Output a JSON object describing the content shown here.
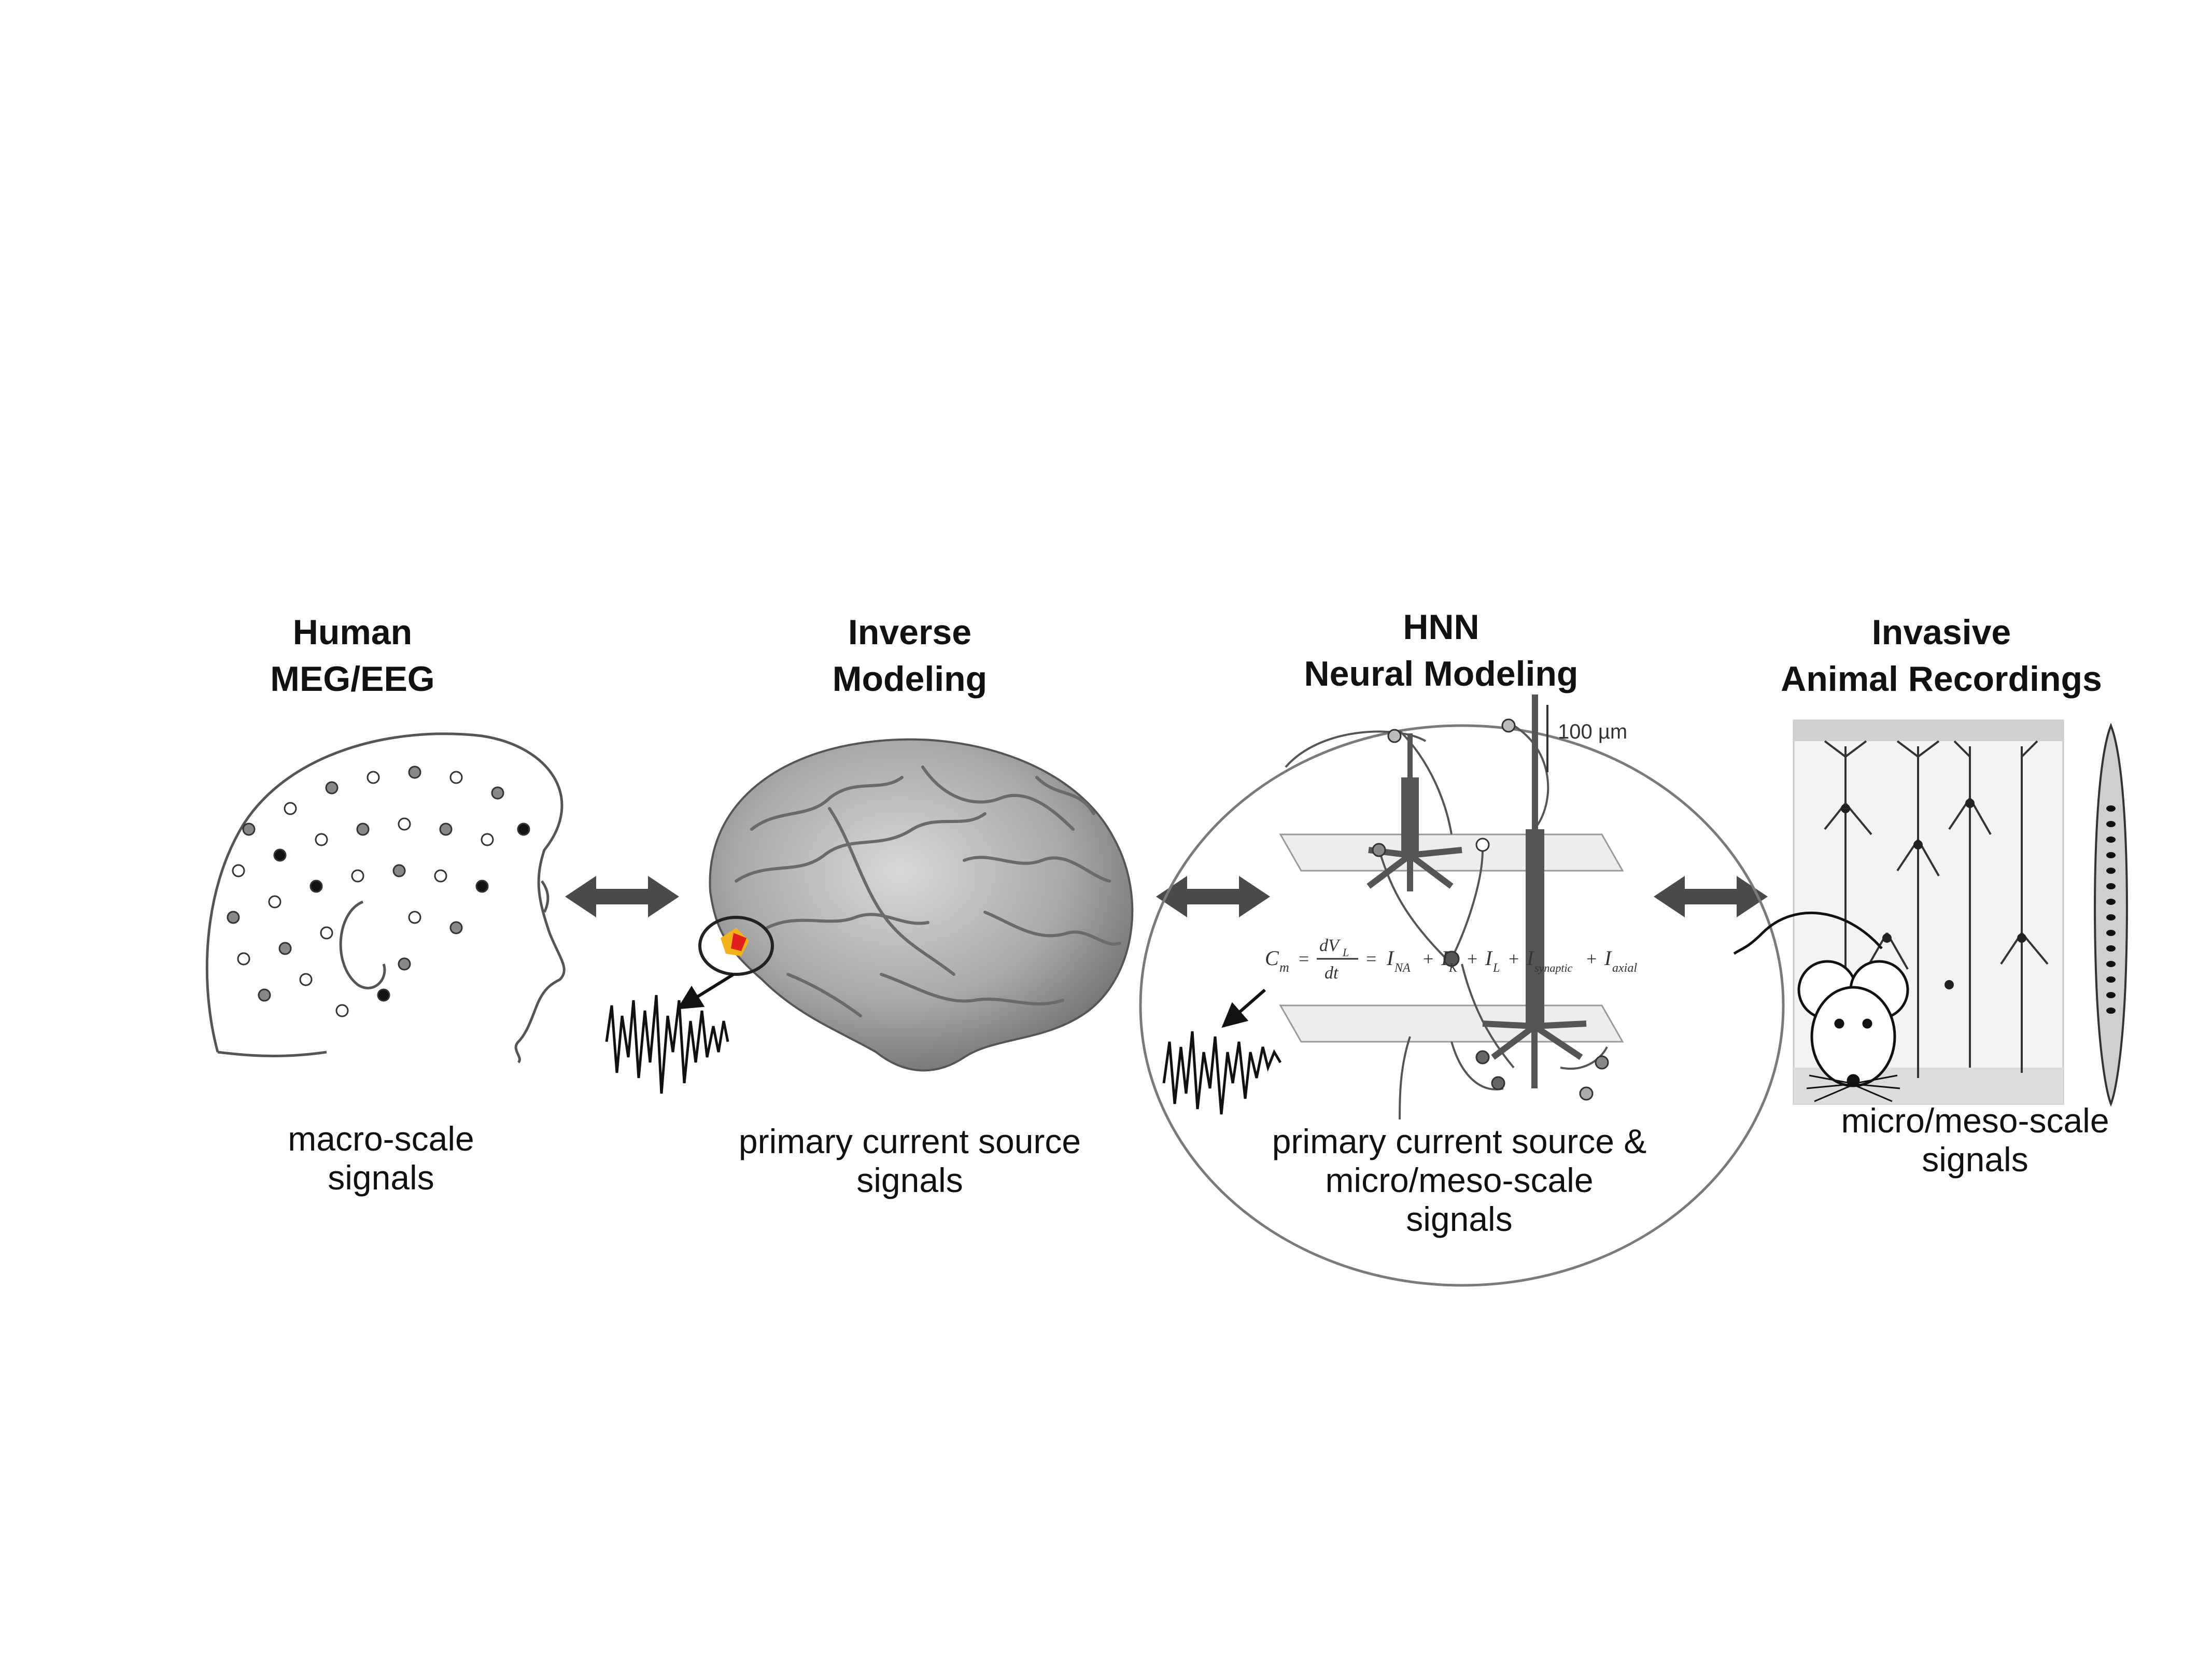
{
  "panels": [
    {
      "id": "human",
      "title": [
        "Human",
        "MEG/EEG"
      ],
      "caption": [
        "macro-scale",
        "signals"
      ]
    },
    {
      "id": "inverse",
      "title": [
        "Inverse",
        "Modeling"
      ],
      "caption": [
        "primary current source",
        "signals"
      ]
    },
    {
      "id": "hnn",
      "title": [
        "HNN",
        "Neural Modeling"
      ],
      "caption": [
        "primary current source &",
        "micro/meso-scale",
        "signals"
      ]
    },
    {
      "id": "invasive",
      "title": [
        "Invasive",
        "Animal Recordings"
      ],
      "caption": [
        "micro/meso-scale",
        "signals"
      ]
    }
  ],
  "scale_bar": "100 µm",
  "equation": {
    "lhs": "C",
    "lhs_sub": "m",
    "frac_num": "dV",
    "frac_num_sub": "L",
    "frac_den": "dt",
    "rhs": [
      "I",
      "I",
      "I",
      "I",
      "I"
    ],
    "rhs_subs": [
      "NA",
      "K",
      "L",
      "synaptic",
      "axial"
    ]
  },
  "colors": {
    "arrow": "#4a4a4a",
    "ink": "#111111",
    "brain": "#a9a9a9",
    "circle": "#7a7a7a",
    "plane": "#ededed",
    "source_hot": "#e0201a",
    "source_warm": "#f3b21a"
  },
  "icons": [
    "double-arrow-icon",
    "eeg-head-icon",
    "brain-icon",
    "neuron-icon",
    "mouse-icon",
    "laminar-probe-icon"
  ]
}
